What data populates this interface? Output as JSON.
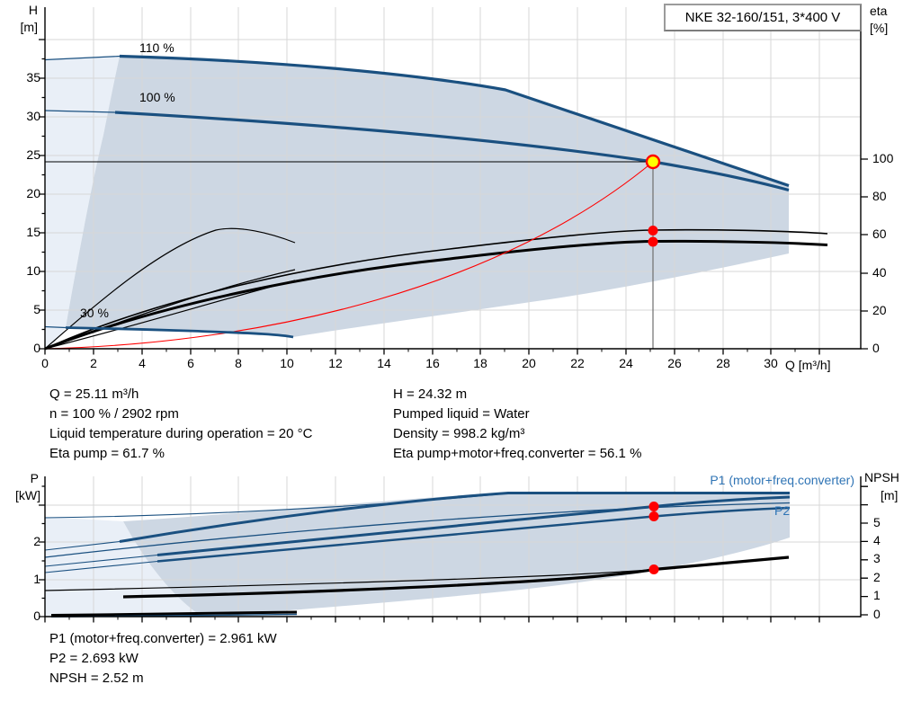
{
  "title_box": "NKE 32-160/151, 3*400 V",
  "top_chart": {
    "h_axis": {
      "name": "H",
      "unit": "[m]"
    },
    "eta_axis": {
      "name": "eta",
      "unit": "[%]"
    },
    "q_axis_label": "Q [m³/h]",
    "h_ticks": [
      "0",
      "5",
      "10",
      "15",
      "20",
      "25",
      "30",
      "35"
    ],
    "eta_ticks": [
      "0",
      "20",
      "40",
      "60",
      "80",
      "100"
    ],
    "x_ticks": [
      "0",
      "2",
      "4",
      "6",
      "8",
      "10",
      "12",
      "14",
      "16",
      "18",
      "20",
      "22",
      "24",
      "26",
      "28",
      "30"
    ],
    "speed_labels": {
      "s110": "110 %",
      "s100": "100 %",
      "s30": "30 %"
    }
  },
  "bottom_chart": {
    "p_axis": {
      "name": "P",
      "unit": "[kW]"
    },
    "npsh_axis": {
      "name": "NPSH",
      "unit": "[m]"
    },
    "p_ticks": [
      "0",
      "1",
      "2"
    ],
    "npsh_ticks": [
      "0",
      "1",
      "2",
      "3",
      "4",
      "5"
    ],
    "curve_labels": {
      "p1": "P1 (motor+freq.converter)",
      "p2": "P2"
    }
  },
  "info_top_left": [
    "Q = 25.11 m³/h",
    "n = 100 % / 2902 rpm",
    "Liquid temperature during operation = 20 °C",
    "Eta pump = 61.7 %"
  ],
  "info_top_right": [
    "H = 24.32 m",
    "Pumped liquid = Water",
    "Density = 998.2 kg/m³",
    "Eta pump+motor+freq.converter = 56.1 %"
  ],
  "info_bottom": [
    "P1 (motor+freq.converter) = 2.961 kW",
    "P2 = 2.693 kW",
    "NPSH = 2.52 m"
  ],
  "colors": {
    "curve_blue": "#1a5080",
    "label_blue": "#2f74b5",
    "envelope": "#cdd7e3",
    "envelope_light": "#e9eff7",
    "grid": "#d7d7d7",
    "red": "#ff0000",
    "operating_yellow": "#ffff00"
  },
  "chart_data": [
    {
      "type": "line",
      "title": "NKE 32-160/151, 3*400 V",
      "xlabel": "Q [m³/h]",
      "ylabel": "H [m]",
      "ylabel_right": "eta [%]",
      "xlim": [
        0,
        33.7
      ],
      "ylim": [
        0,
        44
      ],
      "ylim_right": [
        0,
        104
      ],
      "grid": true,
      "legend_position": "none",
      "series": [
        {
          "name": "H at 110 %",
          "axis": "left",
          "color": "#1a5080",
          "points": [
            [
              3.1,
              38.0
            ],
            [
              10,
              36.9
            ],
            [
              19.0,
              33.5
            ],
            [
              25,
              27.8
            ],
            [
              30.8,
              21.1
            ]
          ]
        },
        {
          "name": "H at 100 %",
          "axis": "left",
          "color": "#1a5080",
          "points": [
            [
              2.9,
              30.6
            ],
            [
              10,
              29.7
            ],
            [
              16.7,
              28.1
            ],
            [
              25.11,
              24.32
            ],
            [
              30.8,
              20.5
            ]
          ]
        },
        {
          "name": "H at 30 %",
          "axis": "left",
          "color": "#1a5080",
          "points": [
            [
              0.85,
              2.7
            ],
            [
              5,
              2.5
            ],
            [
              9,
              2.0
            ],
            [
              10.3,
              1.5
            ]
          ]
        },
        {
          "name": "Eta pump",
          "axis": "right",
          "color": "#000000",
          "points": [
            [
              0,
              0
            ],
            [
              9.3,
              37
            ],
            [
              16.7,
              51
            ],
            [
              25.11,
              61.7
            ],
            [
              30.8,
              61
            ],
            [
              32.3,
              60
            ]
          ]
        },
        {
          "name": "Eta pump+motor+freq.converter",
          "axis": "right",
          "color": "#000000",
          "points": [
            [
              0,
              0
            ],
            [
              9.3,
              33
            ],
            [
              16.7,
              46
            ],
            [
              25.11,
              56.1
            ],
            [
              30.8,
              55.5
            ],
            [
              32.3,
              55
            ]
          ]
        },
        {
          "name": "Eta at 30 %",
          "axis": "right",
          "color": "#000000",
          "points": [
            [
              0,
              0
            ],
            [
              4,
              42
            ],
            [
              7,
              62
            ],
            [
              10.3,
              56
            ]
          ]
        },
        {
          "name": "System curve",
          "axis": "left",
          "color": "#ff0000",
          "points": [
            [
              0,
              0
            ],
            [
              10,
              3.9
            ],
            [
              15,
              8.7
            ],
            [
              20,
              15.4
            ],
            [
              25.11,
              24.32
            ]
          ]
        }
      ],
      "operating_point": {
        "Q": 25.11,
        "H": 24.32,
        "eta_pump": 61.7,
        "eta_total": 56.1
      },
      "annotations": [
        "110 %",
        "100 %",
        "30 %"
      ],
      "envelope": {
        "Q_max": 30.8,
        "speed_range": "30–110 %"
      }
    },
    {
      "type": "line",
      "xlabel": "Q [m³/h]",
      "ylabel": "P [kW]",
      "ylabel_right": "NPSH [m]",
      "xlim": [
        0,
        33.7
      ],
      "ylim": [
        0,
        3.76
      ],
      "ylim_right": [
        0,
        7.6
      ],
      "grid": true,
      "legend_position": "top-right",
      "series": [
        {
          "name": "P1 (motor+freq.converter) 100 %",
          "axis": "left",
          "color": "#1a5080",
          "points": [
            [
              0,
              1.35
            ],
            [
              10,
              2.0
            ],
            [
              17,
              2.45
            ],
            [
              25.11,
              2.961
            ],
            [
              30.8,
              3.2
            ]
          ]
        },
        {
          "name": "P2 100 %",
          "axis": "left",
          "color": "#1a5080",
          "points": [
            [
              0,
              1.18
            ],
            [
              10,
              1.75
            ],
            [
              17,
              2.2
            ],
            [
              25.11,
              2.693
            ],
            [
              30.8,
              2.92
            ]
          ]
        },
        {
          "name": "P1 limit 110 %",
          "axis": "left",
          "color": "#1a5080",
          "points": [
            [
              0,
              1.78
            ],
            [
              19,
              3.33
            ],
            [
              30.8,
              3.33
            ]
          ]
        },
        {
          "name": "P2 limit 110 %",
          "axis": "left",
          "color": "#1a5080",
          "points": [
            [
              0,
              1.59
            ],
            [
              15,
              2.4
            ],
            [
              30.8,
              3.05
            ]
          ]
        },
        {
          "name": "P2 30 %",
          "axis": "left",
          "color": "#000000",
          "points": [
            [
              0.3,
              0.04
            ],
            [
              10.4,
              0.12
            ]
          ]
        },
        {
          "name": "NPSH",
          "axis": "right",
          "color": "#000000",
          "points": [
            [
              3.2,
              1.0
            ],
            [
              12,
              1.4
            ],
            [
              20,
              2.0
            ],
            [
              25.11,
              2.52
            ],
            [
              30.8,
              3.15
            ]
          ]
        }
      ],
      "operating_point": {
        "Q": 25.11,
        "P1": 2.961,
        "P2": 2.693,
        "NPSH": 2.52
      }
    }
  ]
}
